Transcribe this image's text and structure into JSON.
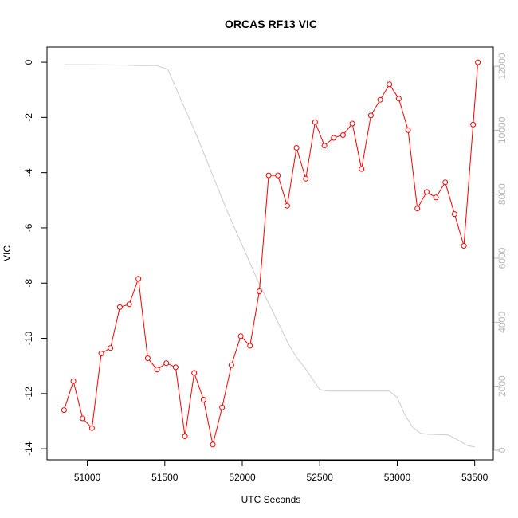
{
  "chart_data": {
    "type": "line",
    "title": "ORCAS RF13 VIC",
    "xlabel": "UTC Seconds",
    "ylabel": "VIC",
    "xlim": [
      50740,
      53620
    ],
    "ylim": [
      -14.4,
      0.55
    ],
    "y2lim": [
      -300,
      12600
    ],
    "x_ticks": [
      51000,
      51500,
      52000,
      52500,
      53000,
      53500
    ],
    "x_tick_labels": [
      "51000",
      "51500",
      "52000",
      "52500",
      "53000",
      "53500"
    ],
    "y_ticks": [
      0,
      -2,
      -4,
      -6,
      -8,
      -10,
      -12,
      -14
    ],
    "y_tick_labels": [
      "0",
      "-2",
      "-4",
      "-6",
      "-8",
      "-10",
      "-12",
      "-14"
    ],
    "y2_ticks": [
      0,
      2000,
      4000,
      6000,
      8000,
      10000,
      12000
    ],
    "y2_tick_labels": [
      "0",
      "2000",
      "4000",
      "6000",
      "8000",
      "10000",
      "12000"
    ],
    "grid": false,
    "series": [
      {
        "axis": "left",
        "color": "#ff0000",
        "marker": "open-circle",
        "points": [
          [
            50850,
            -12.6
          ],
          [
            50910,
            -11.55
          ],
          [
            50970,
            -12.9
          ],
          [
            51030,
            -13.25
          ],
          [
            51090,
            -10.55
          ],
          [
            51150,
            -10.35
          ],
          [
            51210,
            -8.87
          ],
          [
            51270,
            -8.77
          ],
          [
            51330,
            -7.84
          ],
          [
            51390,
            -10.72
          ],
          [
            51450,
            -11.13
          ],
          [
            51510,
            -10.9
          ],
          [
            51570,
            -11.05
          ],
          [
            51630,
            -13.55
          ],
          [
            51690,
            -11.25
          ],
          [
            51750,
            -12.22
          ],
          [
            51810,
            -13.85
          ],
          [
            51870,
            -12.5
          ],
          [
            51930,
            -10.97
          ],
          [
            51990,
            -9.92
          ],
          [
            52050,
            -10.27
          ],
          [
            52110,
            -8.3
          ],
          [
            52170,
            -4.1
          ],
          [
            52230,
            -4.1
          ],
          [
            52290,
            -5.2
          ],
          [
            52350,
            -3.1
          ],
          [
            52410,
            -4.22
          ],
          [
            52470,
            -2.17
          ],
          [
            52530,
            -3.02
          ],
          [
            52590,
            -2.74
          ],
          [
            52650,
            -2.64
          ],
          [
            52710,
            -2.22
          ],
          [
            52770,
            -3.87
          ],
          [
            52830,
            -1.93
          ],
          [
            52890,
            -1.36
          ],
          [
            52950,
            -0.8
          ],
          [
            53010,
            -1.32
          ],
          [
            53070,
            -2.46
          ],
          [
            53130,
            -5.3
          ],
          [
            53190,
            -4.7
          ],
          [
            53250,
            -4.9
          ],
          [
            53310,
            -4.35
          ],
          [
            53370,
            -5.5
          ],
          [
            53430,
            -6.65
          ],
          [
            53490,
            -2.26
          ],
          [
            53520,
            0.0
          ]
        ]
      },
      {
        "axis": "right",
        "color": "#cccccc",
        "marker": "none",
        "points": [
          [
            50850,
            12050
          ],
          [
            51000,
            12050
          ],
          [
            51200,
            12040
          ],
          [
            51350,
            12020
          ],
          [
            51450,
            12020
          ],
          [
            51520,
            11900
          ],
          [
            51600,
            11000
          ],
          [
            51700,
            9900
          ],
          [
            51800,
            8700
          ],
          [
            51900,
            7500
          ],
          [
            52000,
            6400
          ],
          [
            52100,
            5300
          ],
          [
            52200,
            4300
          ],
          [
            52300,
            3300
          ],
          [
            52350,
            2900
          ],
          [
            52400,
            2600
          ],
          [
            52450,
            2250
          ],
          [
            52500,
            1900
          ],
          [
            52550,
            1850
          ],
          [
            52700,
            1850
          ],
          [
            52950,
            1850
          ],
          [
            53000,
            1650
          ],
          [
            53050,
            1100
          ],
          [
            53100,
            720
          ],
          [
            53150,
            530
          ],
          [
            53200,
            500
          ],
          [
            53330,
            480
          ],
          [
            53400,
            300
          ],
          [
            53450,
            150
          ],
          [
            53500,
            100
          ]
        ]
      }
    ]
  }
}
